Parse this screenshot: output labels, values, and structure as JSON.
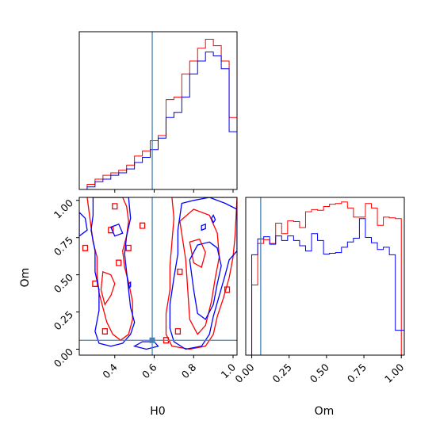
{
  "chart_data": {
    "type": "corner",
    "parameters": [
      "H0",
      "Om"
    ],
    "truths": {
      "H0": 0.59,
      "Om": 0.06
    },
    "axes": {
      "H0": {
        "label": "H0",
        "range": [
          0.22,
          1.02
        ],
        "ticks": [
          0.4,
          0.6,
          0.8,
          1.0
        ],
        "tick_labels": [
          "0.4",
          "0.6",
          "0.8",
          "1.0"
        ]
      },
      "Om": {
        "label": "Om",
        "range": [
          -0.04,
          1.02
        ],
        "ticks": [
          0.0,
          0.25,
          0.5,
          0.75,
          1.0
        ],
        "tick_labels": [
          "0.00",
          "0.25",
          "0.50",
          "0.75",
          "1.00"
        ]
      }
    },
    "colors": {
      "red_series": "#ff0000",
      "blue_series": "#0000ff",
      "truth": "#4682b4"
    },
    "hist_H0": {
      "bin_edges": [
        0.22,
        0.26,
        0.3,
        0.34,
        0.38,
        0.42,
        0.46,
        0.5,
        0.54,
        0.58,
        0.62,
        0.66,
        0.7,
        0.74,
        0.78,
        0.82,
        0.86,
        0.9,
        0.94,
        0.98,
        1.02
      ],
      "series": [
        {
          "values": [
            0,
            4,
            8,
            11,
            13,
            15,
            19,
            26,
            30,
            38,
            42,
            70,
            72,
            90,
            100,
            110,
            117,
            112,
            100,
            56
          ]
        },
        {
          "values": [
            0,
            2,
            6,
            8,
            11,
            13,
            16,
            21,
            25,
            31,
            40,
            56,
            60,
            72,
            90,
            100,
            107,
            104,
            94,
            45
          ]
        }
      ]
    },
    "hist_Om": {
      "bin_edges": [
        -0.04,
        0.0,
        0.04,
        0.08,
        0.12,
        0.16,
        0.2,
        0.24,
        0.28,
        0.32,
        0.36,
        0.4,
        0.44,
        0.48,
        0.52,
        0.56,
        0.6,
        0.64,
        0.68,
        0.72,
        0.76,
        0.8,
        0.84,
        0.88,
        0.92,
        0.96,
        1.0,
        1.02
      ],
      "series": [
        {
          "values": [
            0,
            93,
            148,
            153,
            148,
            175,
            161,
            178,
            177,
            169,
            190,
            193,
            192,
            197,
            200,
            201,
            203,
            195,
            183,
            183,
            201,
            195,
            172,
            183,
            182,
            181,
            0
          ]
        },
        {
          "values": [
            0,
            133,
            154,
            157,
            147,
            158,
            152,
            158,
            152,
            145,
            138,
            161,
            152,
            134,
            135,
            136,
            143,
            150,
            155,
            181,
            156,
            149,
            140,
            143,
            133,
            33,
            33
          ]
        }
      ]
    }
  }
}
